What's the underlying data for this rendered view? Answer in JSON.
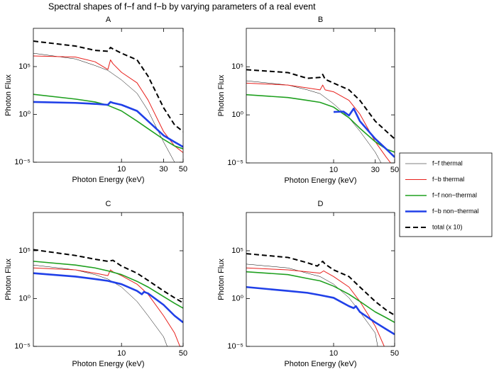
{
  "title": "Spectral shapes of f−f and f−b by varying parameters of a real event",
  "chart_data": [
    {
      "type": "line",
      "title": "A",
      "xlabel": "Photon Energy (keV)",
      "ylabel": "Photon Flux",
      "xscale": "log",
      "yscale": "log",
      "xlim": [
        1,
        50
      ],
      "ylim": [
        1e-05,
        1000000000.0
      ],
      "xticks": [
        10,
        30,
        50
      ],
      "yticks": [
        {
          "value": 1e-05,
          "label": "10⁻⁵"
        },
        {
          "value": 1,
          "label": "10⁰"
        },
        {
          "value": 100000,
          "label": "10⁵"
        }
      ],
      "series": [
        {
          "name": "f−f thermal",
          "color": "#000000",
          "linewidth": 0.5,
          "linestyle": "solid",
          "x": [
            1,
            3,
            5,
            7,
            10,
            15,
            20,
            30,
            40
          ],
          "values": [
            2500000.0,
            630000.0,
            130000.0,
            40000.0,
            4000.0,
            160,
            2.5,
            0.0013,
            1e-05
          ]
        },
        {
          "name": "f−b thermal",
          "color": "#e8201c",
          "linewidth": 1,
          "linestyle": "solid",
          "x": [
            1,
            3,
            5,
            7,
            7.5,
            8,
            10,
            15,
            20,
            30,
            40,
            50
          ],
          "values": [
            1300000.0,
            1000000.0,
            320000.0,
            50000.0,
            500000.0,
            200000.0,
            25000.0,
            2000.0,
            32,
            0.016,
            0.0005,
            0.0001
          ]
        },
        {
          "name": "f−f non−thermal",
          "color": "#1fa01f",
          "linewidth": 1.6,
          "linestyle": "solid",
          "x": [
            1,
            3,
            5,
            7,
            10,
            15,
            20,
            30,
            40,
            50
          ],
          "values": [
            126,
            40,
            20,
            8.9,
            2.3,
            0.2,
            0.032,
            0.0025,
            0.0005,
            0.00025
          ]
        },
        {
          "name": "f−b non−thermal",
          "color": "#2040e8",
          "linewidth": 2.6,
          "linestyle": "solid",
          "x": [
            1,
            3,
            5,
            7,
            7.5,
            8,
            10,
            15,
            20,
            30,
            40,
            50
          ],
          "values": [
            20,
            16,
            12.6,
            10,
            20,
            16,
            10,
            2.3,
            0.2,
            0.0063,
            0.0013,
            0.0004
          ]
        },
        {
          "name": "total (x 10)",
          "color": "#000000",
          "linewidth": 2,
          "linestyle": "dashed",
          "x": [
            1,
            3,
            5,
            7,
            7.5,
            8,
            10,
            15,
            20,
            30,
            40,
            50
          ],
          "values": [
            46000000.0,
            14000000.0,
            5000000.0,
            4000000.0,
            10000000.0,
            7000000.0,
            2500000.0,
            500000.0,
            10000.0,
            5,
            0.08,
            0.016
          ]
        }
      ]
    },
    {
      "type": "line",
      "title": "B",
      "xlabel": "Photon Energy (keV)",
      "ylabel": "Photon Flux",
      "xscale": "log",
      "yscale": "log",
      "xlim": [
        1,
        50
      ],
      "ylim": [
        1e-05,
        1000000000.0
      ],
      "xticks": [
        10,
        30,
        50
      ],
      "yticks": [
        {
          "value": 1e-05,
          "label": "10⁻⁵"
        },
        {
          "value": 1,
          "label": "10⁰"
        },
        {
          "value": 100000,
          "label": "10⁵"
        }
      ],
      "series": [
        {
          "name": "f−f thermal",
          "color": "#000000",
          "linewidth": 0.5,
          "linestyle": "solid",
          "x": [
            1,
            3,
            5,
            7,
            10,
            15,
            20,
            30,
            35
          ],
          "values": [
            3500,
            1260,
            400,
            160,
            14,
            0.5,
            0.02,
            0.00013,
            1e-05
          ]
        },
        {
          "name": "f−b thermal",
          "color": "#e8201c",
          "linewidth": 1,
          "linestyle": "solid",
          "x": [
            1,
            3,
            5,
            7,
            7.5,
            8,
            10,
            15,
            20,
            30,
            40,
            45
          ],
          "values": [
            2000,
            1260,
            630,
            400,
            1260,
            400,
            250,
            32,
            1.2,
            0.0016,
            4e-05,
            1e-05
          ]
        },
        {
          "name": "f−f non−thermal",
          "color": "#1fa01f",
          "linewidth": 1.6,
          "linestyle": "solid",
          "x": [
            1,
            3,
            5,
            7,
            10,
            15,
            20,
            30,
            40,
            50
          ],
          "values": [
            126,
            63,
            32,
            20,
            6.3,
            0.5,
            0.04,
            0.0016,
            0.00028,
            0.00013
          ]
        },
        {
          "name": "f−b non−thermal",
          "color": "#2040e8",
          "linewidth": 2.6,
          "linestyle": "solid",
          "x": [
            10,
            13,
            15,
            17,
            20,
            30,
            40,
            50
          ],
          "values": [
            2,
            2.2,
            0.85,
            4.5,
            0.22,
            0.0032,
            0.00028,
            4e-05
          ]
        },
        {
          "name": "total (x 10)",
          "color": "#000000",
          "linewidth": 2,
          "linestyle": "dashed",
          "x": [
            1,
            3,
            5,
            7,
            7.5,
            8,
            10,
            15,
            20,
            30,
            40,
            50
          ],
          "values": [
            50000.0,
            25000.0,
            6300.0,
            7900.0,
            16000.0,
            5000.0,
            2000.0,
            400,
            32,
            0.22,
            0.02,
            0.0032
          ]
        }
      ]
    },
    {
      "type": "line",
      "title": "C",
      "xlabel": "Photon Energy (keV)",
      "ylabel": "Photon Flux",
      "xscale": "log",
      "yscale": "log",
      "xlim": [
        1,
        50
      ],
      "ylim": [
        1e-05,
        1000000000.0
      ],
      "xticks": [
        10,
        50
      ],
      "yticks": [
        {
          "value": 1e-05,
          "label": "10⁻⁵"
        },
        {
          "value": 1,
          "label": "10⁰"
        },
        {
          "value": 100000,
          "label": "10⁵"
        }
      ],
      "series": [
        {
          "name": "f−f thermal",
          "color": "#000000",
          "linewidth": 0.5,
          "linestyle": "solid",
          "x": [
            1,
            3,
            5,
            7,
            10,
            15,
            20,
            30,
            33
          ],
          "values": [
            3200,
            1000,
            320,
            110,
            16,
            0.5,
            0.016,
            0.0001,
            1e-05
          ]
        },
        {
          "name": "f−b thermal",
          "color": "#e8201c",
          "linewidth": 1,
          "linestyle": "solid",
          "x": [
            1,
            3,
            5,
            7,
            7.5,
            8,
            10,
            15,
            20,
            30,
            40,
            46
          ],
          "values": [
            1600,
            1000,
            450,
            250,
            1000,
            630,
            250,
            32,
            2.8,
            0.016,
            0.00025,
            1e-05
          ]
        },
        {
          "name": "f−f non−thermal",
          "color": "#1fa01f",
          "linewidth": 1.6,
          "linestyle": "solid",
          "x": [
            1,
            3,
            5,
            7,
            10,
            15,
            20,
            30,
            40,
            50
          ],
          "values": [
            7900,
            3200,
            1600,
            790,
            320,
            63,
            16,
            1.6,
            0.32,
            0.1
          ]
        },
        {
          "name": "f−b non−thermal",
          "color": "#2040e8",
          "linewidth": 2.6,
          "linestyle": "solid",
          "x": [
            1,
            3,
            5,
            7,
            10,
            15,
            17,
            18,
            20,
            30,
            40,
            50
          ],
          "values": [
            450,
            200,
            110,
            71,
            32,
            6.3,
            2.8,
            5,
            3.5,
            0.22,
            0.016,
            0.0032
          ]
        },
        {
          "name": "total (x 10)",
          "color": "#000000",
          "linewidth": 2,
          "linestyle": "dashed",
          "x": [
            1,
            3,
            5,
            7,
            8,
            10,
            15,
            20,
            30,
            40,
            50
          ],
          "values": [
            130000.0,
            32000.0,
            13000.0,
            7900,
            10000.0,
            2500,
            450,
            79,
            6.3,
            1.2,
            0.35
          ]
        }
      ]
    },
    {
      "type": "line",
      "title": "D",
      "xlabel": "Photon Energy (keV)",
      "ylabel": "Photon Flux",
      "xscale": "log",
      "yscale": "log",
      "xlim": [
        1,
        50
      ],
      "ylim": [
        1e-05,
        1000000000.0
      ],
      "xticks": [
        10,
        50
      ],
      "yticks": [
        {
          "value": 1e-05,
          "label": "10⁻⁵"
        },
        {
          "value": 1,
          "label": "10⁰"
        },
        {
          "value": 100000,
          "label": "10⁵"
        }
      ],
      "series": [
        {
          "name": "f−f thermal",
          "color": "#000000",
          "linewidth": 0.5,
          "linestyle": "solid",
          "x": [
            1,
            3,
            5,
            7,
            10,
            15,
            20,
            30,
            32
          ],
          "values": [
            4000,
            1600,
            450,
            200,
            32,
            1.2,
            0.04,
            0.00025,
            1e-05
          ]
        },
        {
          "name": "f−b thermal",
          "color": "#e8201c",
          "linewidth": 1,
          "linestyle": "solid",
          "x": [
            1,
            3,
            5,
            7,
            7.7,
            8,
            10,
            15,
            20,
            30,
            38
          ],
          "values": [
            1600,
            1000,
            630,
            450,
            790,
            630,
            200,
            16,
            0.5,
            0.0013,
            1e-05
          ]
        },
        {
          "name": "f−f non−thermal",
          "color": "#1fa01f",
          "linewidth": 1.6,
          "linestyle": "solid",
          "x": [
            1,
            3,
            5,
            7,
            10,
            15,
            20,
            30,
            40,
            50
          ],
          "values": [
            630,
            320,
            126,
            71,
            20,
            2.8,
            0.5,
            0.04,
            0.01,
            0.0032
          ]
        },
        {
          "name": "f−b non−thermal",
          "color": "#2040e8",
          "linewidth": 2.6,
          "linestyle": "solid",
          "x": [
            1,
            3,
            5,
            7,
            10,
            15,
            17,
            18,
            20,
            30,
            40,
            50
          ],
          "values": [
            16,
            6.3,
            4,
            2.3,
            1.2,
            0.16,
            0.1,
            0.16,
            0.04,
            0.0032,
            0.00063,
            0.00018
          ]
        },
        {
          "name": "total (x 10)",
          "color": "#000000",
          "linewidth": 2,
          "linestyle": "dashed",
          "x": [
            1,
            3,
            5,
            6.5,
            7.5,
            8,
            10,
            15,
            20,
            30,
            40,
            50
          ],
          "values": [
            50000.0,
            20000.0,
            5600,
            2500,
            7900,
            4000,
            1000,
            200,
            16,
            0.5,
            0.063,
            0.018
          ]
        }
      ]
    }
  ]
}
